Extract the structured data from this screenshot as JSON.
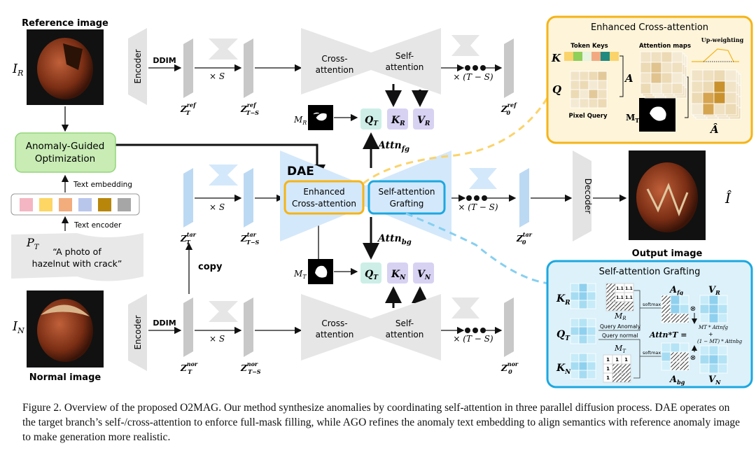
{
  "images": {
    "reference_label": "Reference image",
    "normal_label": "Normal image",
    "output_label": "Output image",
    "I_R": {
      "main": "I",
      "sub": "R"
    },
    "I_N": {
      "main": "I",
      "sub": "N"
    },
    "I_hat": "Î"
  },
  "labels": {
    "encoder": "Encoder",
    "decoder": "Decoder",
    "ddim": "DDIM",
    "times_S": "× S",
    "times_T_S": "× (T − S)",
    "cross_attention": [
      "Cross-",
      "attention"
    ],
    "self_attention": [
      "Self-",
      "attention"
    ],
    "copy": "copy",
    "dae": "DAE",
    "enhanced_cross": [
      "Enhanced",
      "Cross-attention"
    ],
    "sa_grafting": [
      "Self-attention",
      "Grafting"
    ],
    "attn_fg": {
      "main": "Attn",
      "sub": "fg"
    },
    "attn_bg": {
      "main": "Attn",
      "sub": "bg"
    },
    "M_R": {
      "main": "M",
      "sub": "R"
    },
    "M_T": {
      "main": "M",
      "sub": "T"
    },
    "Q_T": {
      "main": "Q",
      "sub": "T"
    },
    "K_R": {
      "main": "K",
      "sub": "R"
    },
    "V_R": {
      "main": "V",
      "sub": "R"
    },
    "K_N": {
      "main": "K",
      "sub": "N"
    },
    "V_N": {
      "main": "V",
      "sub": "N"
    }
  },
  "latents": {
    "ref": [
      {
        "main": "Z",
        "sup": "ref",
        "sub": "T"
      },
      {
        "main": "Z",
        "sup": "ref",
        "sub": "T−S"
      },
      {
        "main": "Z",
        "sup": "ref",
        "sub": "0"
      }
    ],
    "tar": [
      {
        "main": "Z",
        "sup": "tar",
        "sub": "T"
      },
      {
        "main": "Z",
        "sup": "tar",
        "sub": "T−S"
      },
      {
        "main": "Z",
        "sup": "tar",
        "sub": "0"
      }
    ],
    "nor": [
      {
        "main": "Z",
        "sup": "nor",
        "sub": "T"
      },
      {
        "main": "Z",
        "sup": "nor",
        "sub": "T−S"
      },
      {
        "main": "Z",
        "sup": "nor",
        "sub": "0"
      }
    ]
  },
  "ago": {
    "title": [
      "Anomaly-Guided",
      "Optimization"
    ],
    "text_embedding": "Text embedding",
    "text_encoder": "Text encoder",
    "embedding_colors": [
      "#f4b6c2",
      "#fdd663",
      "#f3ac7c",
      "#b9c6ec",
      "#b8860b",
      "#a6a6a6"
    ],
    "prompt_symbol": {
      "main": "P",
      "sub": "T"
    },
    "prompt": [
      "“A photo of",
      "hazelnut with crack”"
    ]
  },
  "eca_panel": {
    "title": "Enhanced Cross-attention",
    "token_keys": "Token Keys",
    "attention_maps": "Attention maps",
    "up_weighting": "Up-weighting",
    "pixel_query": "Pixel Query",
    "K": "K",
    "Q": "Q",
    "A": "A",
    "A_hat": "Â",
    "M_T": {
      "main": "M",
      "sub": "T"
    },
    "key_colors": [
      "#fbd36b",
      "#8fcf5a",
      "#e6f4e0",
      "#f2a982",
      "#1f8a80",
      "#fbd36b"
    ],
    "border_color": "#f5b417",
    "fill_color": "#fdf4d9"
  },
  "sag_panel": {
    "title": "Self-attention Grafting",
    "K_R": {
      "main": "K",
      "sub": "R"
    },
    "Q_T": {
      "main": "Q",
      "sub": "T"
    },
    "K_N": {
      "main": "K",
      "sub": "N"
    },
    "M_R": {
      "main": "M",
      "sub": "R"
    },
    "M_T": {
      "main": "M",
      "sub": "T"
    },
    "query_anomaly": "Query Anomaly",
    "query_normal": "Query normal",
    "softmax": "softmax",
    "A_fg": {
      "main": "A",
      "sub": "fg"
    },
    "A_bg": {
      "main": "A",
      "sub": "bg"
    },
    "V_R": {
      "main": "V",
      "sub": "R"
    },
    "V_N": {
      "main": "V",
      "sub": "N"
    },
    "mask_value_R": "1.1",
    "mask_value_T": "1",
    "formula_lhs": "Attn*T =",
    "formula_top": "MT * Attnfg",
    "formula_plus": "+",
    "formula_bottom": "(1 − MT) * Attnbg",
    "otimes": "⊗",
    "border_color": "#1ca8e0",
    "fill_color": "#dcf1fa"
  },
  "caption": "Figure 2. Overview of the proposed O2MAG. Our method synthesize anomalies by coordinating self-attention in three parallel diffusion process. DAE operates on the target branch’s self-/cross-attention to enforce full-mask filling, while AGO refines the anomaly text embedding to align semantics with reference anomaly image to make generation more realistic."
}
